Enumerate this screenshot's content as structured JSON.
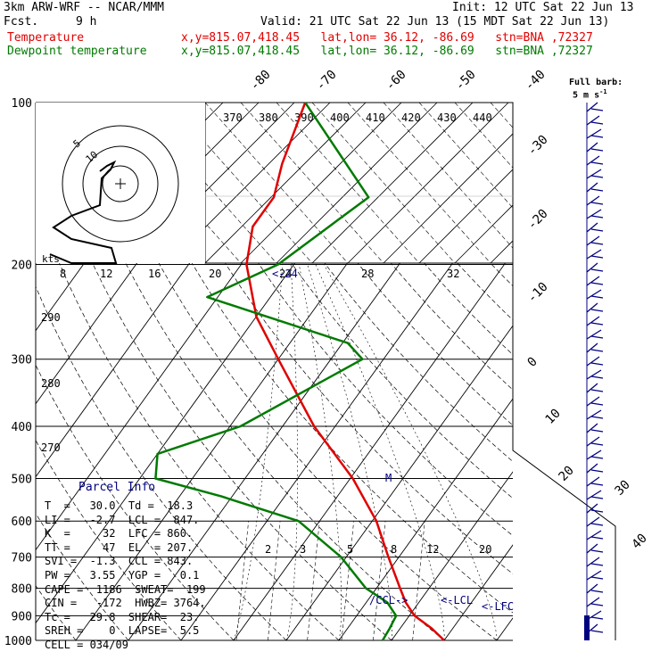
{
  "header": {
    "model": "3km ARW-WRF -- NCAR/MMM",
    "init": "Init: 12 UTC Sat 22 Jun 13",
    "fcst_label": "Fcst.",
    "fcst_value": "9 h",
    "valid": "Valid: 21 UTC Sat 22 Jun 13 (15 MDT Sat 22 Jun 13)",
    "temp_label": "Temperature",
    "temp_info": "x,y=815.07,418.45   lat,lon= 36.12, -86.69   stn=BNA ,72327",
    "dew_label": "Dewpoint temperature",
    "dew_info": "x,y=815.07,418.45   lat,lon= 36.12, -86.69   stn=BNA ,72327"
  },
  "colors": {
    "temperature": "#e00000",
    "dewpoint": "#007a00",
    "grid": "#000000",
    "mixing": "#000080"
  },
  "wind_header": {
    "line1": "Full barb:",
    "line2": "5 m s",
    "sup": "-1"
  },
  "parcel": {
    "title": "Parcel Info",
    "rows": [
      "T  =   30.0  Td =  18.3",
      "LI =   -2.7  LCL =  847.",
      "K  =     32  LFC = 860.",
      "TT =     47  EL  = 207.",
      "SVI =  -1.3  CCL = 843.",
      "PW =   3.55  YGP =   0.1",
      "CAPE =  1186  SWEAT=  199",
      "CIN =   -172  HWBZ= 3764.",
      "Tc =   29.8  SHEAR=  23.",
      "SREH =    0  LAPSE=  5.5",
      "CELL = 034/09"
    ]
  },
  "hodograph": {
    "units": "kts",
    "ring_labels": [
      "5",
      "10"
    ]
  },
  "theta_labels": [
    "370",
    "380",
    "390",
    "400",
    "410",
    "420",
    "430",
    "440"
  ],
  "inset_speed_labels": [
    "8",
    "12",
    "16",
    "20",
    "24",
    "28",
    "32"
  ],
  "inset_marker": "<-24",
  "mix_labels": [
    "2",
    "3",
    "5",
    "8",
    "12",
    "20"
  ],
  "markers": {
    "ccl": "/CCL->",
    "lcl": "<-LCL",
    "lfc": "<-LFC",
    "m": "M"
  },
  "chart_data": {
    "type": "line",
    "title": "",
    "ylabel": "",
    "xlabel": "",
    "y_scale": "log-pressure",
    "pressure_levels": [
      100,
      200,
      300,
      400,
      500,
      600,
      700,
      800,
      900,
      1000
    ],
    "pressure_labels": [
      "100",
      "200",
      "300",
      "400",
      "500",
      "600",
      "700",
      "800",
      "900",
      "1000"
    ],
    "temp_ticks": [
      "-80",
      "-70",
      "-60",
      "-50",
      "-40",
      "-30",
      "-20",
      "-10",
      "0",
      "10",
      "20",
      "30",
      "40"
    ],
    "series": [
      {
        "name": "Temperature",
        "pressure": [
          1000,
          950,
          900,
          850,
          800,
          700,
          600,
          500,
          400,
          300,
          250,
          200,
          170,
          150,
          130,
          100
        ],
        "value_c": [
          30,
          26,
          21,
          17.5,
          14.5,
          8,
          0.8,
          -9.5,
          -24,
          -40,
          -50,
          -59,
          -63,
          -63,
          -66,
          -70
        ]
      },
      {
        "name": "Dewpoint temperature",
        "pressure": [
          1000,
          950,
          900,
          850,
          800,
          700,
          600,
          540,
          500,
          450,
          400,
          300,
          280,
          230,
          200,
          150,
          100
        ],
        "value_c": [
          18.3,
          18,
          17.5,
          14,
          8,
          -1,
          -14,
          -32,
          -47,
          -50,
          -38,
          -24,
          -29,
          -62,
          -53,
          -45,
          -70
        ]
      }
    ]
  }
}
